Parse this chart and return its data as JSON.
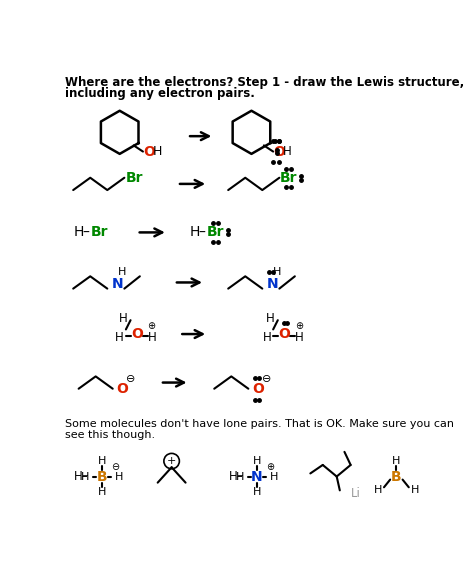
{
  "title_line1": "Where are the electrons? Step 1 - draw the Lewis structure,",
  "title_line2": "including any electron pairs.",
  "bg_color": "#ffffff",
  "black": "#000000",
  "red": "#dd2200",
  "green": "#008800",
  "blue": "#0033cc",
  "orange": "#cc7700",
  "gray": "#999999",
  "footer_line1": "Some molecules don't have lone pairs. That is OK. Make sure you can",
  "footer_line2": "see this though."
}
